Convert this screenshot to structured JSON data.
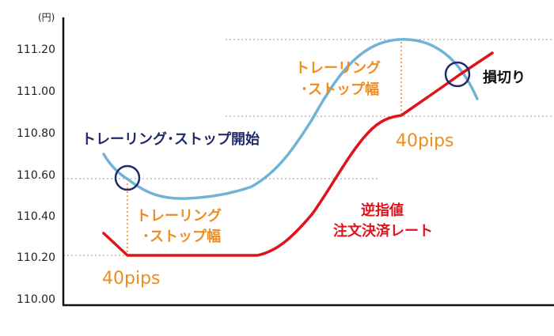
{
  "chart_data": {
    "type": "line",
    "unit_label": "(円)",
    "y_ticks": [
      "110.00",
      "110.20",
      "110.40",
      "110.60",
      "110.80",
      "111.00",
      "111.20"
    ],
    "ylim": [
      110.0,
      111.3
    ],
    "series": [
      {
        "color": "#6fb3d6",
        "points": [
          [
            0.0,
            110.71
          ],
          [
            0.06,
            110.57
          ],
          [
            0.12,
            110.49
          ],
          [
            0.21,
            110.5
          ],
          [
            0.3,
            110.6
          ],
          [
            0.36,
            110.76
          ],
          [
            0.42,
            110.99
          ],
          [
            0.48,
            111.17
          ],
          [
            0.55,
            111.24
          ],
          [
            0.62,
            111.23
          ],
          [
            0.7,
            111.1
          ],
          [
            0.75,
            110.95
          ]
        ]
      },
      {
        "color": "#e0121a",
        "points": [
          [
            0.0,
            110.31
          ],
          [
            0.06,
            110.2
          ],
          [
            0.39,
            110.2
          ],
          [
            0.46,
            110.33
          ],
          [
            0.53,
            110.6
          ],
          [
            0.6,
            110.82
          ],
          [
            0.64,
            110.88
          ],
          [
            0.69,
            110.98
          ],
          [
            0.75,
            111.13
          ],
          [
            0.79,
            111.19
          ]
        ]
      }
    ],
    "reference_lines": [
      110.2,
      110.59,
      110.88,
      111.25
    ],
    "annotations": {
      "trailing_start": "トレーリング･ストップ開始",
      "trailing_width_1": [
        "トレーリング",
        "･ストップ幅"
      ],
      "trailing_width_2": [
        "トレーリング",
        "･ストップ幅"
      ],
      "pips_1": "40pips",
      "pips_2": "40pips",
      "stop_order": [
        "逆指値",
        "注文決済レート"
      ],
      "stop_loss": "損切り"
    }
  },
  "colors": {
    "navy": "#1f2a6b",
    "orange": "#f08c1e",
    "red": "#e0121a",
    "blue": "#6fb3d6"
  }
}
